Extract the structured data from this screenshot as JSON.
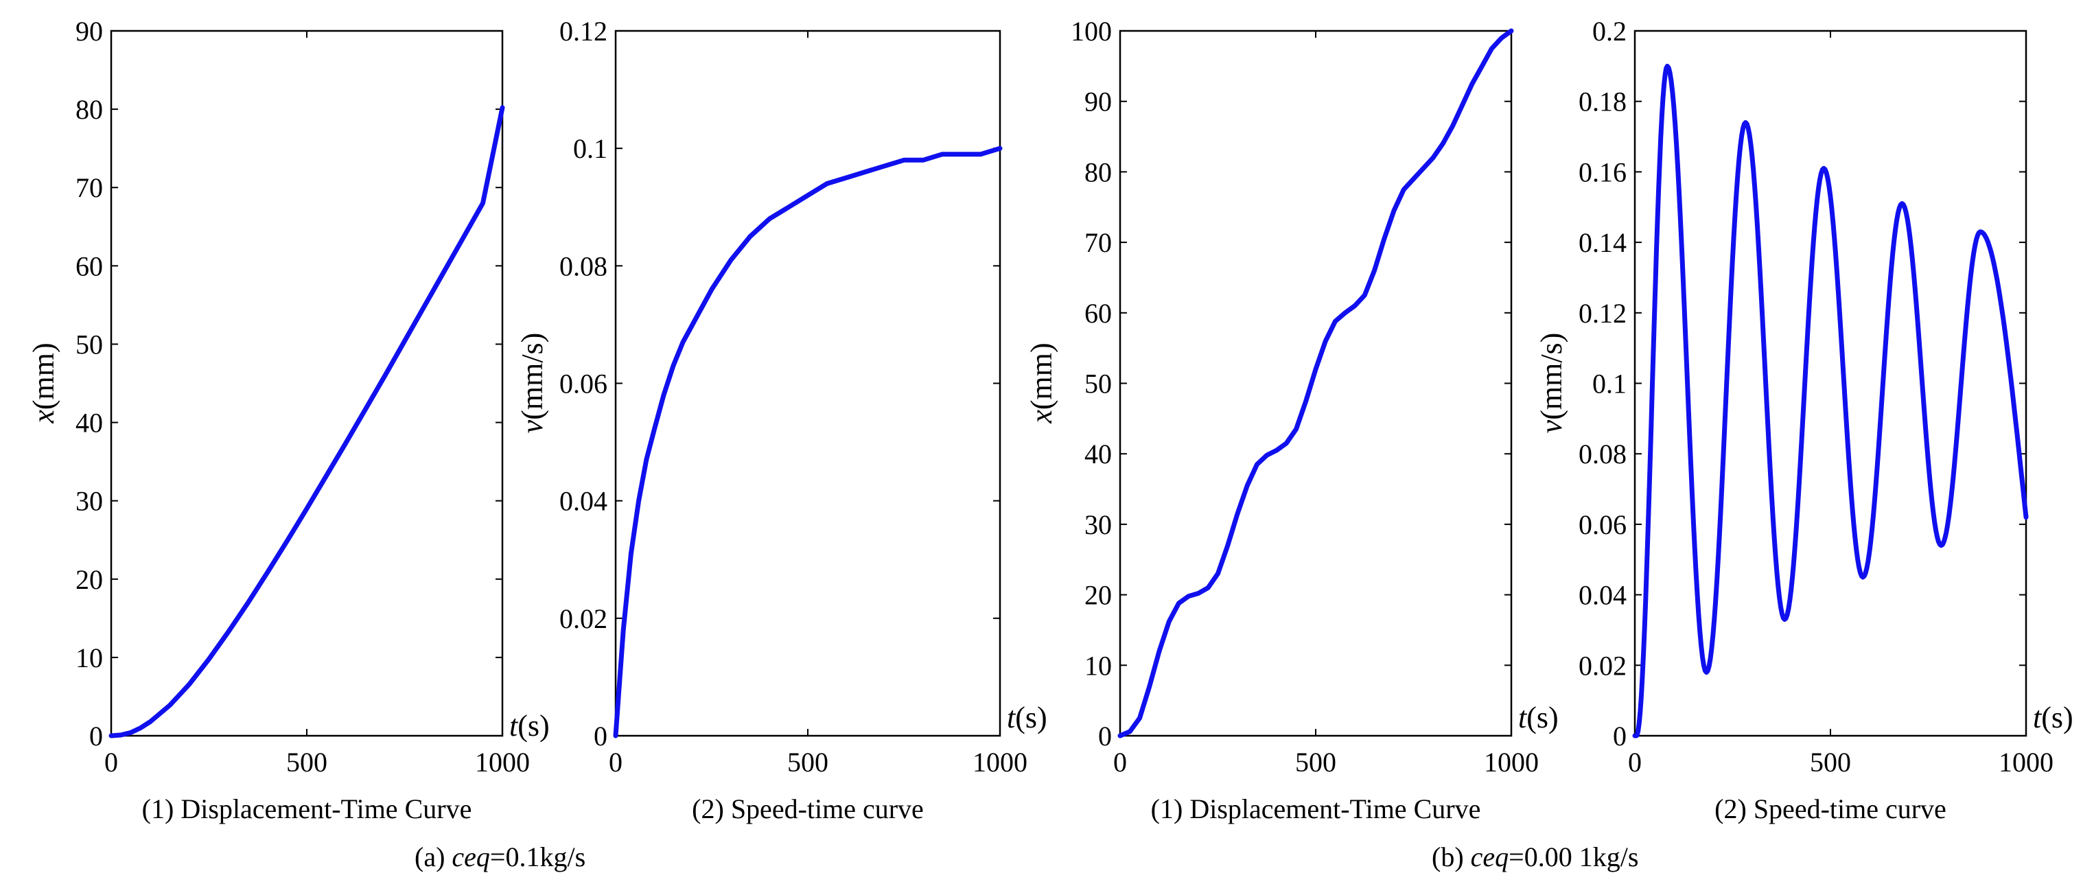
{
  "chart_data": [
    {
      "id": "a1",
      "type": "line",
      "caption": "(1) Displacement-Time Curve",
      "xlabel_var": "t",
      "xlabel_unit": "(s)",
      "ylabel_var": "x",
      "ylabel_unit": "(mm)",
      "xlim": [
        0,
        1000
      ],
      "ylim": [
        0,
        90
      ],
      "xticks": [
        "0",
        "500",
        "1000"
      ],
      "xtick_values": [
        0,
        500,
        1000
      ],
      "yticks": [
        "0",
        "10",
        "20",
        "30",
        "40",
        "50",
        "60",
        "70",
        "80",
        "90"
      ],
      "ytick_values": [
        0,
        10,
        20,
        30,
        40,
        50,
        60,
        70,
        80,
        90
      ],
      "series": [
        {
          "name": "x",
          "x": [
            0,
            25,
            50,
            75,
            100,
            150,
            200,
            250,
            300,
            350,
            400,
            450,
            500,
            550,
            600,
            650,
            700,
            750,
            800,
            850,
            900,
            950,
            1000
          ],
          "y": [
            0,
            0.1,
            0.4,
            1.0,
            1.8,
            3.9,
            6.6,
            9.8,
            13.3,
            17.0,
            20.9,
            24.9,
            29.0,
            33.2,
            37.4,
            41.7,
            46.0,
            50.4,
            54.8,
            59.2,
            63.6,
            68.0,
            80.2
          ]
        }
      ]
    },
    {
      "id": "a2",
      "type": "line",
      "caption": "(2) Speed-time curve",
      "xlabel_var": "t",
      "xlabel_unit": "(s)",
      "ylabel_var": "v",
      "ylabel_unit": "(mm/s)",
      "xlim": [
        0,
        1000
      ],
      "ylim": [
        0,
        0.12
      ],
      "xticks": [
        "0",
        "500",
        "1000"
      ],
      "xtick_values": [
        0,
        500,
        1000
      ],
      "yticks": [
        "0",
        "0.02",
        "0.04",
        "0.06",
        "0.08",
        "0.1",
        "0.12"
      ],
      "ytick_values": [
        0,
        0.02,
        0.04,
        0.06,
        0.08,
        0.1,
        0.12
      ],
      "series": [
        {
          "name": "v",
          "x": [
            0,
            20,
            40,
            60,
            80,
            100,
            125,
            150,
            175,
            200,
            250,
            300,
            350,
            400,
            450,
            500,
            550,
            600,
            650,
            700,
            750,
            800,
            850,
            900,
            950,
            1000
          ],
          "y": [
            0,
            0.018,
            0.031,
            0.04,
            0.047,
            0.052,
            0.058,
            0.063,
            0.067,
            0.07,
            0.076,
            0.081,
            0.085,
            0.088,
            0.09,
            0.092,
            0.094,
            0.095,
            0.096,
            0.097,
            0.098,
            0.098,
            0.099,
            0.099,
            0.099,
            0.1
          ]
        }
      ]
    },
    {
      "id": "b1",
      "type": "line",
      "caption": "(1) Displacement-Time Curve",
      "xlabel_var": "t",
      "xlabel_unit": "(s)",
      "ylabel_var": "x",
      "ylabel_unit": "(mm)",
      "xlim": [
        0,
        1000
      ],
      "ylim": [
        0,
        100
      ],
      "xticks": [
        "0",
        "500",
        "1000"
      ],
      "xtick_values": [
        0,
        500,
        1000
      ],
      "yticks": [
        "0",
        "10",
        "20",
        "30",
        "40",
        "50",
        "60",
        "70",
        "80",
        "90",
        "100"
      ],
      "ytick_values": [
        0,
        10,
        20,
        30,
        40,
        50,
        60,
        70,
        80,
        90,
        100
      ],
      "series": [
        {
          "name": "x",
          "x": [
            0,
            25,
            50,
            75,
            100,
            125,
            150,
            175,
            200,
            225,
            250,
            275,
            300,
            325,
            350,
            375,
            400,
            425,
            450,
            475,
            500,
            525,
            550,
            575,
            600,
            625,
            650,
            675,
            700,
            725,
            750,
            775,
            800,
            825,
            850,
            875,
            900,
            925,
            950,
            975,
            1000
          ],
          "y": [
            0,
            0.6,
            2.5,
            7.0,
            12.0,
            16.2,
            18.8,
            19.8,
            20.2,
            21.0,
            23.0,
            27.0,
            31.5,
            35.5,
            38.5,
            39.8,
            40.5,
            41.5,
            43.5,
            47.5,
            52.0,
            56.0,
            58.8,
            60.0,
            61.0,
            62.5,
            66.0,
            70.5,
            74.5,
            77.5,
            79.0,
            80.5,
            82.0,
            84.0,
            86.5,
            89.5,
            92.5,
            95.0,
            97.5,
            99.0,
            100.0
          ]
        }
      ]
    },
    {
      "id": "b2",
      "type": "line",
      "caption": "(2) Speed-time curve",
      "xlabel_var": "t",
      "xlabel_unit": "(s)",
      "ylabel_var": "v",
      "ylabel_unit": "(mm/s)",
      "xlim": [
        0,
        1000
      ],
      "ylim": [
        0,
        0.2
      ],
      "xticks": [
        "0",
        "500",
        "1000"
      ],
      "xtick_values": [
        0,
        500,
        1000
      ],
      "yticks": [
        "0",
        "0.02",
        "0.04",
        "0.06",
        "0.08",
        "0.1",
        "0.12",
        "0.14",
        "0.16",
        "0.18",
        "0.2"
      ],
      "ytick_values": [
        0,
        0.02,
        0.04,
        0.06,
        0.08,
        0.1,
        0.12,
        0.14,
        0.16,
        0.18,
        0.2
      ],
      "series": [
        {
          "name": "v",
          "peaks": [
            {
              "t": 83,
              "v": 0.19
            },
            {
              "t": 283,
              "v": 0.174
            },
            {
              "t": 483,
              "v": 0.161
            },
            {
              "t": 683,
              "v": 0.151
            },
            {
              "t": 883,
              "v": 0.143
            }
          ],
          "troughs": [
            {
              "t": 183,
              "v": 0.018
            },
            {
              "t": 383,
              "v": 0.033
            },
            {
              "t": 583,
              "v": 0.045
            },
            {
              "t": 783,
              "v": 0.054
            }
          ],
          "start": {
            "t": 0,
            "v": 0
          },
          "end": {
            "t": 1000,
            "v": 0.062
          }
        }
      ]
    }
  ],
  "groups": [
    {
      "label_prefix": "(a)",
      "var": "ceq",
      "value": "=0.1kg/s"
    },
    {
      "label_prefix": "(b)",
      "var": "ceq",
      "value": "=0.00 1kg/s"
    }
  ]
}
